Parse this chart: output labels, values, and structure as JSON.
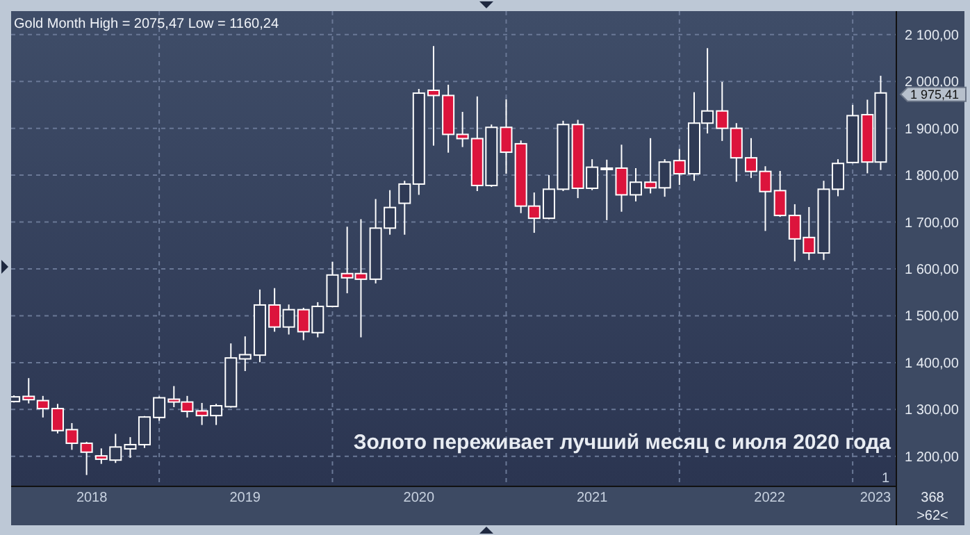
{
  "chart_data": {
    "type": "candlestick",
    "title": "Gold Month High = 2075,47 Low = 1160,24",
    "x": [
      "2018-03",
      "2018-04",
      "2018-05",
      "2018-06",
      "2018-07",
      "2018-08",
      "2018-09",
      "2018-10",
      "2018-11",
      "2018-12",
      "2019-01",
      "2019-02",
      "2019-03",
      "2019-04",
      "2019-05",
      "2019-06",
      "2019-07",
      "2019-08",
      "2019-09",
      "2019-10",
      "2019-11",
      "2019-12",
      "2020-01",
      "2020-02",
      "2020-03",
      "2020-04",
      "2020-05",
      "2020-06",
      "2020-07",
      "2020-08",
      "2020-09",
      "2020-10",
      "2020-11",
      "2020-12",
      "2021-01",
      "2021-02",
      "2021-03",
      "2021-04",
      "2021-05",
      "2021-06",
      "2021-07",
      "2021-08",
      "2021-09",
      "2021-10",
      "2021-11",
      "2021-12",
      "2022-01",
      "2022-02",
      "2022-03",
      "2022-04",
      "2022-05",
      "2022-06",
      "2022-07",
      "2022-08",
      "2022-09",
      "2022-10",
      "2022-11",
      "2022-12",
      "2023-01",
      "2023-02",
      "2023-03"
    ],
    "ohlc": [
      [
        1317,
        1330,
        1315,
        1327
      ],
      [
        1328,
        1367,
        1313,
        1321
      ],
      [
        1319,
        1329,
        1283,
        1302
      ],
      [
        1302,
        1312,
        1249,
        1255
      ],
      [
        1257,
        1271,
        1214,
        1228
      ],
      [
        1228,
        1231,
        1160.24,
        1209
      ],
      [
        1201,
        1217,
        1184,
        1194
      ],
      [
        1192,
        1248,
        1186,
        1220
      ],
      [
        1216,
        1241,
        1197,
        1225
      ],
      [
        1225,
        1286,
        1218,
        1284
      ],
      [
        1283,
        1328,
        1276,
        1325
      ],
      [
        1322,
        1350,
        1305,
        1316
      ],
      [
        1316,
        1329,
        1283,
        1296
      ],
      [
        1297,
        1314,
        1267,
        1287
      ],
      [
        1287,
        1312,
        1267,
        1308
      ],
      [
        1306,
        1441,
        1304,
        1410
      ],
      [
        1408,
        1456,
        1382,
        1417
      ],
      [
        1416,
        1556,
        1401,
        1523
      ],
      [
        1523,
        1559,
        1466,
        1476
      ],
      [
        1476,
        1524,
        1460,
        1513
      ],
      [
        1513,
        1517,
        1448,
        1466
      ],
      [
        1464,
        1529,
        1454,
        1520
      ],
      [
        1520,
        1615,
        1518,
        1587
      ],
      [
        1590,
        1690,
        1548,
        1581
      ],
      [
        1590,
        1706,
        1454,
        1578
      ],
      [
        1578,
        1749,
        1569,
        1687
      ],
      [
        1687,
        1768,
        1673,
        1731
      ],
      [
        1740,
        1788,
        1673,
        1781
      ],
      [
        1781,
        1984,
        1758,
        1975
      ],
      [
        1981,
        2075.47,
        1863,
        1970
      ],
      [
        1970,
        1993,
        1848,
        1887
      ],
      [
        1887,
        1935,
        1860,
        1878
      ],
      [
        1878,
        1968,
        1766,
        1778
      ],
      [
        1778,
        1908,
        1775,
        1902
      ],
      [
        1902,
        1962,
        1803,
        1849
      ],
      [
        1867,
        1874,
        1719,
        1734
      ],
      [
        1734,
        1763,
        1677,
        1708
      ],
      [
        1708,
        1800,
        1706,
        1770
      ],
      [
        1770,
        1916,
        1766,
        1908
      ],
      [
        1908,
        1918,
        1751,
        1772
      ],
      [
        1772,
        1834,
        1768,
        1817
      ],
      [
        1813,
        1833,
        1704,
        1815
      ],
      [
        1815,
        1865,
        1722,
        1758
      ],
      [
        1758,
        1815,
        1744,
        1785
      ],
      [
        1785,
        1879,
        1761,
        1773
      ],
      [
        1773,
        1834,
        1754,
        1828
      ],
      [
        1831,
        1856,
        1779,
        1803
      ],
      [
        1803,
        1977,
        1788,
        1911
      ],
      [
        1911,
        2071,
        1889,
        1937
      ],
      [
        1937,
        1999,
        1873,
        1900
      ],
      [
        1900,
        1911,
        1786,
        1837
      ],
      [
        1837,
        1879,
        1794,
        1808
      ],
      [
        1808,
        1819,
        1681,
        1765
      ],
      [
        1767,
        1809,
        1711,
        1714
      ],
      [
        1714,
        1738,
        1616,
        1664
      ],
      [
        1667,
        1732,
        1619,
        1634
      ],
      [
        1634,
        1788,
        1619,
        1770
      ],
      [
        1770,
        1834,
        1755,
        1825
      ],
      [
        1827,
        1950,
        1825,
        1927
      ],
      [
        1929,
        1961,
        1804,
        1828
      ],
      [
        1828,
        2012,
        1811,
        1975.41
      ]
    ],
    "colors": [
      "#ffffff",
      "#dc143c",
      "#dc143c",
      "#dc143c",
      "#dc143c",
      "#dc143c",
      "#dc143c",
      "#ffffff",
      "#ffffff",
      "#ffffff",
      "#ffffff",
      "#dc143c",
      "#dc143c",
      "#dc143c",
      "#ffffff",
      "#ffffff",
      "#ffffff",
      "#ffffff",
      "#dc143c",
      "#ffffff",
      "#dc143c",
      "#ffffff",
      "#ffffff",
      "#dc143c",
      "#dc143c",
      "#ffffff",
      "#ffffff",
      "#ffffff",
      "#ffffff",
      "#dc143c",
      "#dc143c",
      "#dc143c",
      "#dc143c",
      "#ffffff",
      "#dc143c",
      "#dc143c",
      "#dc143c",
      "#ffffff",
      "#ffffff",
      "#dc143c",
      "#ffffff",
      "#ffffff",
      "#dc143c",
      "#ffffff",
      "#dc143c",
      "#ffffff",
      "#dc143c",
      "#ffffff",
      "#ffffff",
      "#dc143c",
      "#dc143c",
      "#dc143c",
      "#dc143c",
      "#dc143c",
      "#dc143c",
      "#dc143c",
      "#ffffff",
      "#ffffff",
      "#ffffff",
      "#dc143c",
      "#ffffff"
    ],
    "xlim": [
      "2018-02-23",
      "2023-04-03"
    ],
    "xticks": [
      {
        "value": "2018-08-12",
        "label": "2018"
      },
      {
        "value": "2019-01-01",
        "label": null
      },
      {
        "value": "2019-07-01",
        "label": "2019"
      },
      {
        "value": "2020-01-01",
        "label": null
      },
      {
        "value": "2020-07-01",
        "label": "2020"
      },
      {
        "value": "2021-01-01",
        "label": null
      },
      {
        "value": "2021-07-01",
        "label": "2021"
      },
      {
        "value": "2022-01-01",
        "label": null
      },
      {
        "value": "2022-07-10",
        "label": "2022"
      },
      {
        "value": "2023-01-01",
        "label": null
      },
      {
        "value": "2023-02-18",
        "label": "2023"
      }
    ],
    "ylim": [
      1136,
      2150
    ],
    "yticks": [
      {
        "value": 1200,
        "label": "1 200,00"
      },
      {
        "value": 1300,
        "label": "1 300,00"
      },
      {
        "value": 1400,
        "label": "1 400,00"
      },
      {
        "value": 1500,
        "label": "1 500,00"
      },
      {
        "value": 1600,
        "label": "1 600,00"
      },
      {
        "value": 1700,
        "label": "1 700,00"
      },
      {
        "value": 1800,
        "label": "1 800,00"
      },
      {
        "value": 1900,
        "label": "1 900,00"
      },
      {
        "value": 2000,
        "label": "2 000,00"
      },
      {
        "value": 2100,
        "label": "2 100,00"
      }
    ],
    "grid": true,
    "annotations": [
      "1 975,41",
      "Золото переживает лучший месяц с июля 2020 года",
      "1",
      "368\n>62<"
    ]
  }
}
